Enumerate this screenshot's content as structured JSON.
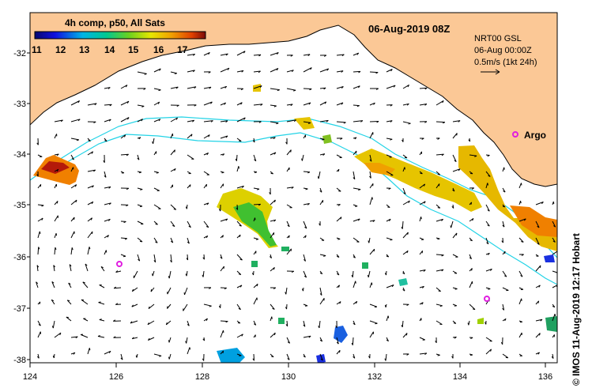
{
  "map": {
    "title_time": "06-Aug-2019 08Z",
    "colorbar": {
      "title": "4h comp, p50, All Sats",
      "ticks": [
        "11",
        "12",
        "13",
        "14",
        "15",
        "16",
        "17"
      ]
    },
    "current_legend": {
      "line1": "NRT00 GSL",
      "line2": "06-Aug 00:00Z",
      "line3": "0.5m/s (1kt 24h)"
    },
    "argo_label": "Argo",
    "lon_ticks": [
      "124",
      "126",
      "128",
      "130",
      "132",
      "134",
      "136"
    ],
    "lat_ticks": [
      "-32",
      "-33",
      "-34",
      "-35",
      "-36",
      "-37",
      "-38"
    ],
    "credit": "© IMOS 11-Aug-2019 12:17 Hobart",
    "colors": {
      "land": "#fbc896",
      "contour": "#22d3e6",
      "argo": "#e01ee0"
    }
  }
}
